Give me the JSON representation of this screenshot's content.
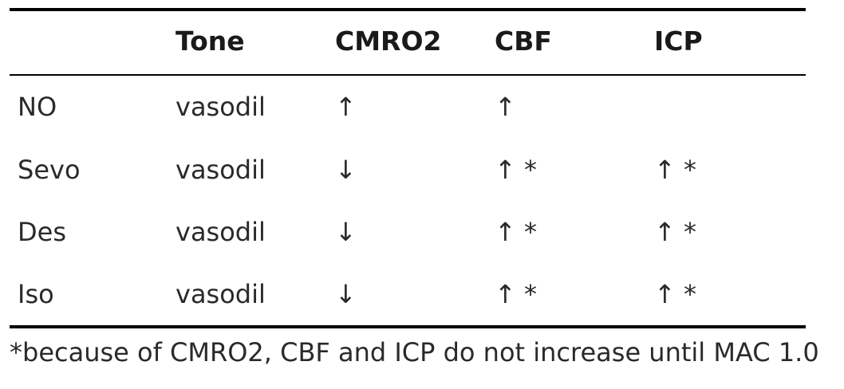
{
  "table": {
    "headers": [
      "",
      "Tone",
      "CMRO2",
      "CBF",
      "ICP"
    ],
    "rows": [
      [
        "NO",
        "vasodil",
        "↑",
        "↑",
        ""
      ],
      [
        "Sevo",
        "vasodil",
        "↓",
        "↑ *",
        "↑ *"
      ],
      [
        "Des",
        "vasodil",
        "↓",
        "↑ *",
        "↑ *"
      ],
      [
        "Iso",
        "vasodil",
        "↓",
        "↑ *",
        "↑ *"
      ]
    ]
  },
  "footnote": "*because of CMRO2, CBF and ICP do not increase until MAC 1.0"
}
